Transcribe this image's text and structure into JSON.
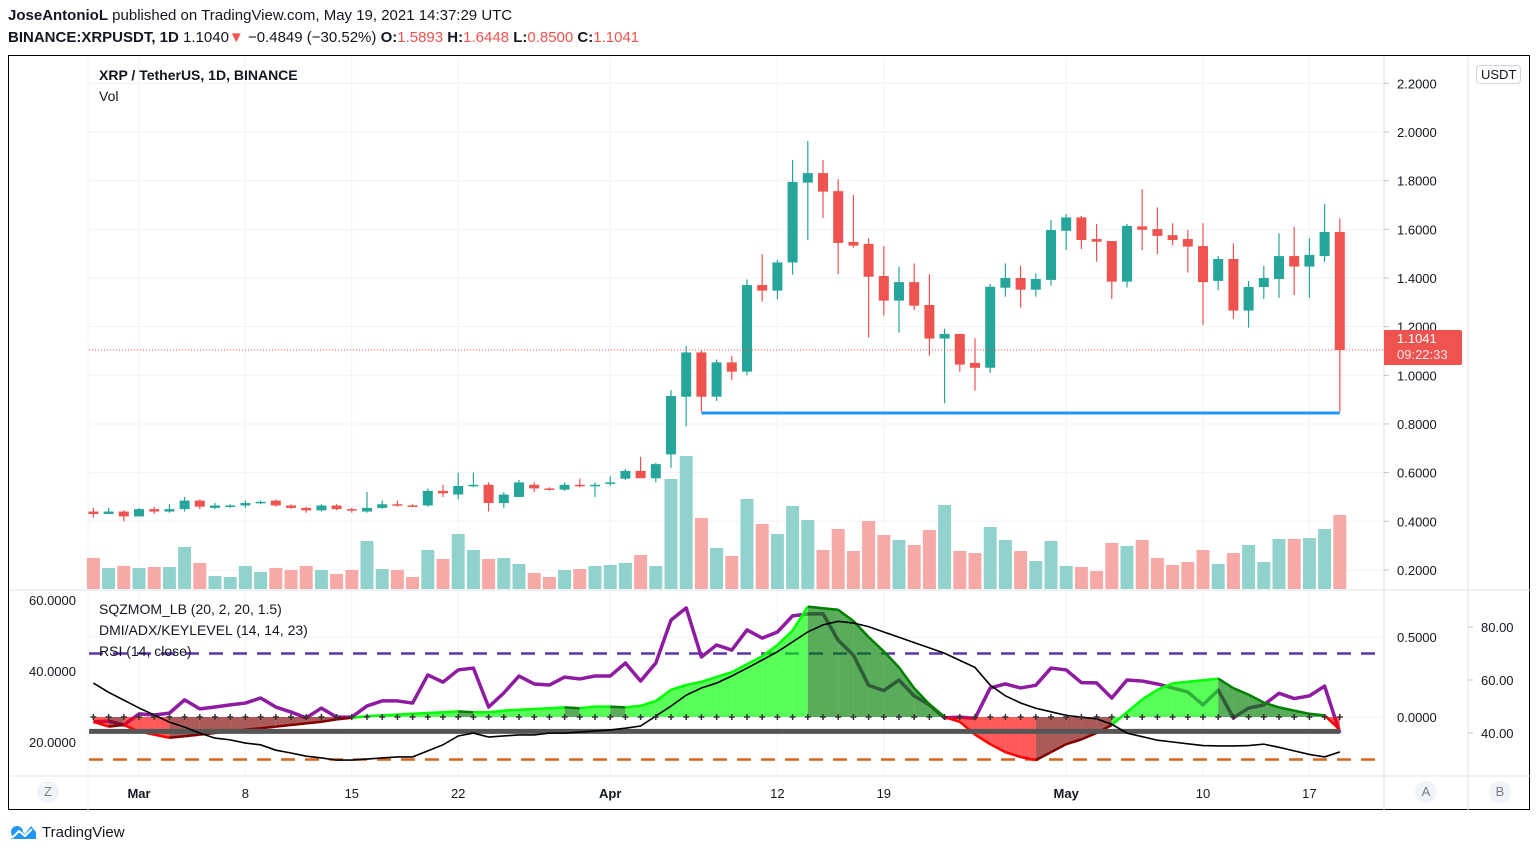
{
  "header": {
    "author": "JoseAntonioL",
    "published": "published on TradingView.com, May 19, 2021 14:37:29 UTC",
    "symbol": "BINANCE:XRPUSDT, 1D",
    "last": "1.1040",
    "direction_icon": "triangle-down-icon",
    "change": "−0.4849 (−30.52%)",
    "o_label": "O:",
    "o": "1.5893",
    "h_label": "H:",
    "h": "1.6448",
    "l_label": "L:",
    "l": "0.8500",
    "c_label": "C:",
    "c": "1.1041"
  },
  "legend": {
    "title": "XRP / TetherUS, 1D, BINANCE",
    "vol": "Vol",
    "sqz": "SQZMOM_LB (20, 2, 20, 1.5)",
    "dmi": "DMI/ADX/KEYLEVEL (14, 14, 23)",
    "rsi": "RSI (14, close)"
  },
  "price_scale": {
    "currency": "USDT",
    "last_price": "1.1041",
    "countdown": "09:22:33"
  },
  "buttons": {
    "z": "Z",
    "a": "A",
    "b": "B"
  },
  "footer": {
    "brand": "TradingView"
  },
  "colors": {
    "up": "#26a69a",
    "down": "#ef5350",
    "vol_up": "#92d2cc",
    "vol_down": "#f7a9a7",
    "sqz_pos_rising": "#00ff00",
    "sqz_pos_falling": "#008000",
    "sqz_neg_falling": "#ff0000",
    "sqz_neg_rising": "#800000",
    "rsi": "#8e1ba0",
    "adx": "#000000",
    "key_level": "#555555",
    "rsi_upper": "#5e35b1",
    "rsi_lower": "#d9641a",
    "drawing": "#2196f3",
    "grid": "#f0f3fa"
  },
  "chart_data": {
    "type": "candlestick",
    "title": "XRP / TetherUS, 1D, BINANCE",
    "price_ticks": [
      {
        "value": 2.2,
        "label": "2.2000"
      },
      {
        "value": 2.0,
        "label": "2.0000"
      },
      {
        "value": 1.8,
        "label": "1.8000"
      },
      {
        "value": 1.6,
        "label": "1.6000"
      },
      {
        "value": 1.4,
        "label": "1.4000"
      },
      {
        "value": 1.2,
        "label": "1.2000"
      },
      {
        "value": 1.0,
        "label": "1.0000"
      },
      {
        "value": 0.8,
        "label": "0.8000"
      },
      {
        "value": 0.6,
        "label": "0.6000"
      },
      {
        "value": 0.4,
        "label": "0.4000"
      },
      {
        "value": 0.2,
        "label": "0.2000"
      }
    ],
    "time_ticks": [
      {
        "date": "2021-03-01",
        "label": "Mar",
        "bold": true
      },
      {
        "date": "2021-03-08",
        "label": "8"
      },
      {
        "date": "2021-03-15",
        "label": "15"
      },
      {
        "date": "2021-03-22",
        "label": "22"
      },
      {
        "date": "2021-04-01",
        "label": "Apr",
        "bold": true
      },
      {
        "date": "2021-04-12",
        "label": "12"
      },
      {
        "date": "2021-04-19",
        "label": "19"
      },
      {
        "date": "2021-05-01",
        "label": "May",
        "bold": true
      },
      {
        "date": "2021-05-10",
        "label": "10"
      },
      {
        "date": "2021-05-17",
        "label": "17"
      }
    ],
    "columns": [
      "date",
      "open",
      "high",
      "low",
      "close",
      "volume_relative"
    ],
    "rows": [
      [
        "2021-02-26",
        0.44,
        0.455,
        0.415,
        0.43,
        31
      ],
      [
        "2021-02-27",
        0.43,
        0.455,
        0.43,
        0.44,
        21
      ],
      [
        "2021-02-28",
        0.44,
        0.445,
        0.4,
        0.42,
        23
      ],
      [
        "2021-03-01",
        0.42,
        0.455,
        0.42,
        0.45,
        21
      ],
      [
        "2021-03-02",
        0.45,
        0.46,
        0.43,
        0.44,
        22
      ],
      [
        "2021-03-03",
        0.44,
        0.47,
        0.435,
        0.45,
        22
      ],
      [
        "2021-03-04",
        0.45,
        0.5,
        0.44,
        0.485,
        42
      ],
      [
        "2021-03-05",
        0.485,
        0.49,
        0.45,
        0.46,
        26
      ],
      [
        "2021-03-06",
        0.455,
        0.475,
        0.45,
        0.465,
        13
      ],
      [
        "2021-03-07",
        0.46,
        0.47,
        0.455,
        0.465,
        12
      ],
      [
        "2021-03-08",
        0.465,
        0.485,
        0.455,
        0.475,
        23
      ],
      [
        "2021-03-09",
        0.475,
        0.485,
        0.47,
        0.48,
        17
      ],
      [
        "2021-03-10",
        0.485,
        0.49,
        0.46,
        0.465,
        21
      ],
      [
        "2021-03-11",
        0.465,
        0.47,
        0.45,
        0.455,
        19
      ],
      [
        "2021-03-12",
        0.455,
        0.46,
        0.435,
        0.445,
        23
      ],
      [
        "2021-03-13",
        0.445,
        0.47,
        0.44,
        0.465,
        19
      ],
      [
        "2021-03-14",
        0.465,
        0.47,
        0.445,
        0.45,
        15
      ],
      [
        "2021-03-15",
        0.45,
        0.455,
        0.435,
        0.445,
        19
      ],
      [
        "2021-03-16",
        0.44,
        0.52,
        0.435,
        0.455,
        48
      ],
      [
        "2021-03-17",
        0.455,
        0.485,
        0.45,
        0.47,
        20
      ],
      [
        "2021-03-18",
        0.47,
        0.485,
        0.46,
        0.465,
        19
      ],
      [
        "2021-03-19",
        0.465,
        0.47,
        0.46,
        0.463,
        12
      ],
      [
        "2021-03-20",
        0.465,
        0.535,
        0.46,
        0.525,
        39
      ],
      [
        "2021-03-21",
        0.525,
        0.55,
        0.5,
        0.515,
        30
      ],
      [
        "2021-03-22",
        0.51,
        0.6,
        0.49,
        0.545,
        55
      ],
      [
        "2021-03-23",
        0.545,
        0.6,
        0.54,
        0.55,
        39
      ],
      [
        "2021-03-24",
        0.55,
        0.56,
        0.44,
        0.475,
        30
      ],
      [
        "2021-03-25",
        0.475,
        0.52,
        0.455,
        0.51,
        31
      ],
      [
        "2021-03-26",
        0.5,
        0.57,
        0.5,
        0.56,
        25
      ],
      [
        "2021-03-27",
        0.55,
        0.56,
        0.52,
        0.535,
        16
      ],
      [
        "2021-03-28",
        0.535,
        0.54,
        0.525,
        0.53,
        12
      ],
      [
        "2021-03-29",
        0.53,
        0.56,
        0.525,
        0.55,
        19
      ],
      [
        "2021-03-30",
        0.55,
        0.575,
        0.54,
        0.545,
        20
      ],
      [
        "2021-03-31",
        0.545,
        0.56,
        0.5,
        0.55,
        23
      ],
      [
        "2021-04-01",
        0.555,
        0.585,
        0.545,
        0.56,
        24
      ],
      [
        "2021-04-02",
        0.575,
        0.615,
        0.57,
        0.607,
        26
      ],
      [
        "2021-04-03",
        0.607,
        0.665,
        0.58,
        0.577,
        34
      ],
      [
        "2021-04-04",
        0.577,
        0.64,
        0.56,
        0.635,
        23
      ],
      [
        "2021-04-05",
        0.675,
        0.94,
        0.62,
        0.915,
        110
      ],
      [
        "2021-04-06",
        0.912,
        1.12,
        0.79,
        1.094,
        133
      ],
      [
        "2021-04-07",
        1.094,
        1.104,
        0.85,
        0.912,
        71
      ],
      [
        "2021-04-08",
        0.912,
        1.065,
        0.895,
        1.053,
        41
      ],
      [
        "2021-04-09",
        1.053,
        1.08,
        0.98,
        1.015,
        33
      ],
      [
        "2021-04-10",
        1.015,
        1.394,
        1.0,
        1.371,
        90
      ],
      [
        "2021-04-11",
        1.371,
        1.498,
        1.303,
        1.348,
        65
      ],
      [
        "2021-04-12",
        1.348,
        1.474,
        1.313,
        1.464,
        55
      ],
      [
        "2021-04-13",
        1.464,
        1.885,
        1.414,
        1.795,
        83
      ],
      [
        "2021-04-14",
        1.792,
        1.963,
        1.556,
        1.831,
        69
      ],
      [
        "2021-04-15",
        1.831,
        1.885,
        1.647,
        1.755,
        39
      ],
      [
        "2021-04-16",
        1.757,
        1.806,
        1.416,
        1.544,
        60
      ],
      [
        "2021-04-17",
        1.548,
        1.741,
        1.525,
        1.533,
        38
      ],
      [
        "2021-04-18",
        1.54,
        1.563,
        1.156,
        1.405,
        68
      ],
      [
        "2021-04-19",
        1.408,
        1.531,
        1.245,
        1.307,
        54
      ],
      [
        "2021-04-20",
        1.307,
        1.446,
        1.175,
        1.383,
        49
      ],
      [
        "2021-04-21",
        1.383,
        1.46,
        1.268,
        1.286,
        44
      ],
      [
        "2021-04-22",
        1.289,
        1.416,
        1.081,
        1.151,
        59
      ],
      [
        "2021-04-23",
        1.151,
        1.192,
        0.885,
        1.17,
        84
      ],
      [
        "2021-04-24",
        1.17,
        1.17,
        1.015,
        1.044,
        38
      ],
      [
        "2021-04-25",
        1.051,
        1.152,
        0.937,
        1.031,
        36
      ],
      [
        "2021-04-26",
        1.031,
        1.375,
        1.01,
        1.364,
        62
      ],
      [
        "2021-04-27",
        1.36,
        1.46,
        1.323,
        1.4,
        49
      ],
      [
        "2021-04-28",
        1.4,
        1.45,
        1.278,
        1.352,
        38
      ],
      [
        "2021-04-29",
        1.352,
        1.419,
        1.323,
        1.396,
        28
      ],
      [
        "2021-04-30",
        1.392,
        1.638,
        1.368,
        1.597,
        48
      ],
      [
        "2021-05-01",
        1.594,
        1.663,
        1.515,
        1.649,
        23
      ],
      [
        "2021-05-02",
        1.649,
        1.655,
        1.519,
        1.556,
        22
      ],
      [
        "2021-05-03",
        1.56,
        1.622,
        1.467,
        1.549,
        18
      ],
      [
        "2021-05-04",
        1.552,
        1.552,
        1.314,
        1.385,
        46
      ],
      [
        "2021-05-05",
        1.385,
        1.622,
        1.361,
        1.614,
        43
      ],
      [
        "2021-05-06",
        1.612,
        1.764,
        1.515,
        1.598,
        49
      ],
      [
        "2021-05-07",
        1.601,
        1.69,
        1.498,
        1.573,
        31
      ],
      [
        "2021-05-08",
        1.576,
        1.625,
        1.535,
        1.556,
        24
      ],
      [
        "2021-05-09",
        1.56,
        1.597,
        1.422,
        1.529,
        27
      ],
      [
        "2021-05-10",
        1.531,
        1.625,
        1.207,
        1.383,
        39
      ],
      [
        "2021-05-11",
        1.388,
        1.49,
        1.35,
        1.478,
        25
      ],
      [
        "2021-05-12",
        1.478,
        1.542,
        1.232,
        1.266,
        36
      ],
      [
        "2021-05-13",
        1.266,
        1.388,
        1.196,
        1.363,
        44
      ],
      [
        "2021-05-14",
        1.363,
        1.45,
        1.314,
        1.4,
        27
      ],
      [
        "2021-05-15",
        1.396,
        1.583,
        1.319,
        1.49,
        50
      ],
      [
        "2021-05-16",
        1.49,
        1.61,
        1.33,
        1.447,
        50
      ],
      [
        "2021-05-17",
        1.447,
        1.563,
        1.319,
        1.495,
        51
      ],
      [
        "2021-05-18",
        1.49,
        1.704,
        1.467,
        1.589,
        60
      ],
      [
        "2021-05-19",
        1.5893,
        1.6448,
        0.85,
        1.1041,
        74
      ]
    ],
    "drawings": [
      {
        "type": "trend-line",
        "from": "2021-04-07",
        "to": "2021-05-19",
        "price": 0.845
      }
    ],
    "indicators": {
      "dmi_axis_ticks": [
        {
          "value": 60,
          "label": "60.0000"
        },
        {
          "value": 40,
          "label": "40.0000"
        },
        {
          "value": 20,
          "label": "20.0000"
        }
      ],
      "sqz_axis_ticks": [
        {
          "value": 0.5,
          "label": "0.5000"
        },
        {
          "value": 0.0,
          "label": "0.0000"
        }
      ],
      "rsi_axis_ticks": [
        {
          "value": 80,
          "label": "80.00"
        },
        {
          "value": 60,
          "label": "60.00"
        },
        {
          "value": 40,
          "label": "40.00"
        }
      ],
      "rsi_levels": [
        70,
        30
      ],
      "key_level": 23,
      "sqzmom": [
        -0.03,
        -0.06,
        -0.05,
        -0.09,
        -0.11,
        -0.13,
        -0.12,
        -0.11,
        -0.1,
        -0.09,
        -0.08,
        -0.07,
        -0.06,
        -0.05,
        -0.04,
        -0.03,
        -0.015,
        -0.005,
        0.005,
        0.01,
        0.015,
        0.02,
        0.025,
        0.03,
        0.035,
        0.03,
        0.03,
        0.04,
        0.045,
        0.05,
        0.055,
        0.06,
        0.055,
        0.065,
        0.065,
        0.06,
        0.07,
        0.1,
        0.17,
        0.2,
        0.22,
        0.25,
        0.28,
        0.33,
        0.38,
        0.45,
        0.54,
        0.69,
        0.68,
        0.67,
        0.6,
        0.5,
        0.41,
        0.31,
        0.18,
        0.08,
        0.0,
        -0.03,
        -0.11,
        -0.17,
        -0.22,
        -0.25,
        -0.27,
        -0.22,
        -0.17,
        -0.14,
        -0.1,
        -0.05,
        0.03,
        0.11,
        0.17,
        0.21,
        0.22,
        0.23,
        0.24,
        0.18,
        0.14,
        0.09,
        0.06,
        0.04,
        0.02,
        0.01,
        -0.08
      ],
      "adx": [
        36.6,
        34,
        31.8,
        29.6,
        27.6,
        25.6,
        24.2,
        22.5,
        21.1,
        20.6,
        19.7,
        19.2,
        17.7,
        16.9,
        16,
        15.5,
        14.9,
        14.9,
        15.2,
        15.5,
        15.8,
        15.8,
        17.5,
        19.2,
        21.7,
        22.5,
        21.4,
        21.7,
        22,
        22,
        22.5,
        22.5,
        22.8,
        23.1,
        23.4,
        23.9,
        24.5,
        27.3,
        30.1,
        33.2,
        35.2,
        36.6,
        38.6,
        40.8,
        43.1,
        45.4,
        48.2,
        51,
        53,
        54,
        53.5,
        52.5,
        51,
        49.5,
        48,
        46.5,
        45,
        43,
        41,
        36,
        33,
        31,
        29.5,
        28.5,
        27.5,
        27,
        26.5,
        25,
        22.5,
        21.5,
        20.5,
        20,
        19.5,
        19,
        18.9,
        18.9,
        19,
        19.4,
        18.5,
        17.5,
        16.5,
        15.8,
        17.2
      ],
      "rsi": [
        44.2,
        44.5,
        43.0,
        47.2,
        46.8,
        47.5,
        52.5,
        49.1,
        49.8,
        50.6,
        51.3,
        53.2,
        49.8,
        47.9,
        45.7,
        49.4,
        46.0,
        46.0,
        50.2,
        52.1,
        52.1,
        51.3,
        61.9,
        59.2,
        63.8,
        64.5,
        49.8,
        55.1,
        61.5,
        58.5,
        58.1,
        61.1,
        60.4,
        61.5,
        61.5,
        66.4,
        59.6,
        66.4,
        82.6,
        87.2,
        68.7,
        73.2,
        71.3,
        78.9,
        75.8,
        78.1,
        84.2,
        84.9,
        85,
        75,
        69.4,
        58,
        56,
        60,
        54,
        50.6,
        45.7,
        46,
        45.5,
        57,
        58.5,
        57,
        58,
        64.5,
        63.8,
        59,
        58.9,
        53.2,
        60,
        59.6,
        58.5,
        57,
        55.5,
        50.6,
        56.2,
        45.7,
        49.4,
        50.6,
        55,
        53,
        54,
        57.7,
        40
      ]
    }
  }
}
